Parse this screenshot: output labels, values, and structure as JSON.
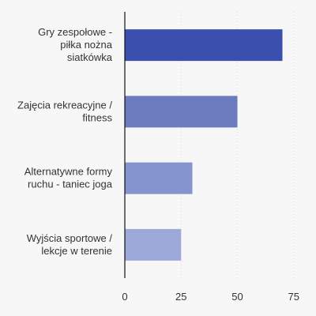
{
  "chart_data": {
    "type": "bar",
    "orientation": "horizontal",
    "categories": [
      [
        "Gry zespołowe -",
        "piłka nożna",
        "siatkówka"
      ],
      [
        "Zajęcia rekreacyjne /",
        "fitness"
      ],
      [
        "Alternatywne formy",
        "ruchu - taniec joga"
      ],
      [
        "Wyjścia sportowe /",
        "lekcje w terenie"
      ]
    ],
    "values": [
      70,
      50,
      30,
      25
    ],
    "bar_colors": [
      "#3a4fae",
      "#6c7bbd",
      "#8594cc",
      "#9da9d8"
    ],
    "xlim": [
      0,
      80
    ],
    "xticks": [
      0,
      25,
      50,
      75
    ],
    "grid": true,
    "title": "",
    "xlabel": "",
    "ylabel": ""
  }
}
